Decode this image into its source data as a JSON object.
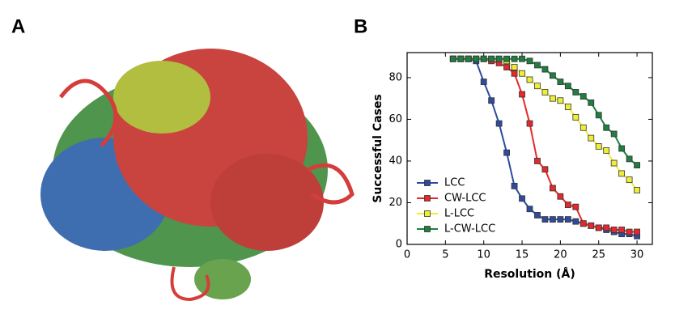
{
  "panel_labels": [
    "A",
    "B"
  ],
  "chart_data": {
    "type": "line",
    "x_label": "Resolution (Å)",
    "y_label": "Successful Cases",
    "x": [
      6,
      7,
      8,
      9,
      10,
      11,
      12,
      13,
      14,
      15,
      16,
      17,
      18,
      19,
      20,
      21,
      22,
      23,
      24,
      25,
      26,
      27,
      28,
      29,
      30
    ],
    "series": [
      {
        "name": "LCC",
        "color": "#2e4b9e",
        "values": [
          89,
          89,
          89,
          88,
          78,
          69,
          58,
          44,
          28,
          22,
          17,
          14,
          12,
          12,
          12,
          12,
          11,
          10,
          9,
          8,
          7,
          6,
          5,
          5,
          4
        ]
      },
      {
        "name": "CW-LCC",
        "color": "#e3292b",
        "values": [
          89,
          89,
          89,
          89,
          89,
          88,
          87,
          85,
          82,
          72,
          58,
          40,
          36,
          27,
          23,
          19,
          18,
          10,
          9,
          8,
          8,
          7,
          7,
          6,
          6
        ]
      },
      {
        "name": "L-LCC",
        "color": "#eded3a",
        "values": [
          89,
          89,
          89,
          89,
          89,
          89,
          89,
          88,
          85,
          82,
          79,
          76,
          73,
          70,
          69,
          66,
          61,
          56,
          51,
          47,
          45,
          39,
          34,
          31,
          26
        ]
      },
      {
        "name": "L-CW-LCC",
        "color": "#1f7f3f",
        "values": [
          89,
          89,
          89,
          89,
          89,
          89,
          89,
          89,
          89,
          89,
          88,
          86,
          84,
          81,
          78,
          76,
          73,
          71,
          68,
          62,
          56,
          53,
          46,
          41,
          38
        ]
      }
    ],
    "xlim": [
      0,
      32
    ],
    "ylim": [
      0,
      92
    ],
    "xticks": [
      0,
      5,
      10,
      15,
      20,
      25,
      30
    ],
    "yticks": [
      0,
      20,
      40,
      60,
      80
    ],
    "legend": "lower left"
  }
}
